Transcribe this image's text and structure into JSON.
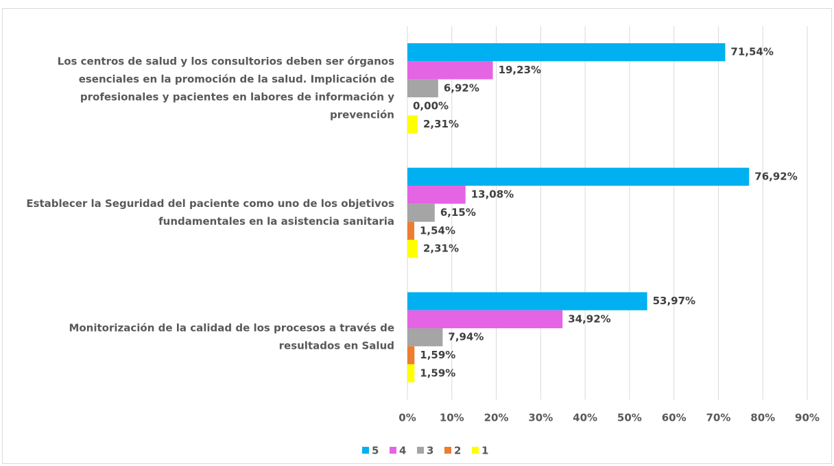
{
  "chart_data": {
    "type": "bar",
    "orientation": "horizontal",
    "categories": [
      [
        "Los centros de salud y los consultorios deben ser órganos",
        "esenciales en la promoción de la salud. Implicación de",
        "profesionales y pacientes en labores de información y",
        "prevención"
      ],
      [
        "Establecer la Seguridad del paciente como uno de los objetivos",
        "fundamentales en la asistencia sanitaria"
      ],
      [
        "Monitorización de la calidad de los procesos a través de",
        "resultados en Salud"
      ]
    ],
    "series": [
      {
        "name": "5",
        "color": "#00b0f0",
        "values": [
          71.54,
          76.92,
          53.97
        ],
        "value_labels": [
          "71,54%",
          "76,92%",
          "53,97%"
        ]
      },
      {
        "name": "4",
        "color": "#e464e4",
        "values": [
          19.23,
          13.08,
          34.92
        ],
        "value_labels": [
          "19,23%",
          "13,08%",
          "34,92%"
        ]
      },
      {
        "name": "3",
        "color": "#a5a5a5",
        "values": [
          6.92,
          6.15,
          7.94
        ],
        "value_labels": [
          "6,92%",
          "6,15%",
          "7,94%"
        ]
      },
      {
        "name": "2",
        "color": "#ed7d31",
        "values": [
          0.0,
          1.54,
          1.59
        ],
        "value_labels": [
          "0,00%",
          "1,54%",
          "1,59%"
        ]
      },
      {
        "name": "1",
        "color": "#ffff00",
        "values": [
          2.31,
          2.31,
          1.59
        ],
        "value_labels": [
          "2,31%",
          "2,31%",
          "1,59%"
        ]
      }
    ],
    "xlim": [
      0,
      90
    ],
    "xticks": [
      {
        "value": 0,
        "label": "0%"
      },
      {
        "value": 10,
        "label": "10%"
      },
      {
        "value": 20,
        "label": "20%"
      },
      {
        "value": 30,
        "label": "30%"
      },
      {
        "value": 40,
        "label": "40%"
      },
      {
        "value": 50,
        "label": "50%"
      },
      {
        "value": 60,
        "label": "60%"
      },
      {
        "value": 70,
        "label": "70%"
      },
      {
        "value": 80,
        "label": "80%"
      },
      {
        "value": 90,
        "label": "90%"
      }
    ],
    "grid": true,
    "legend": "bottom"
  }
}
